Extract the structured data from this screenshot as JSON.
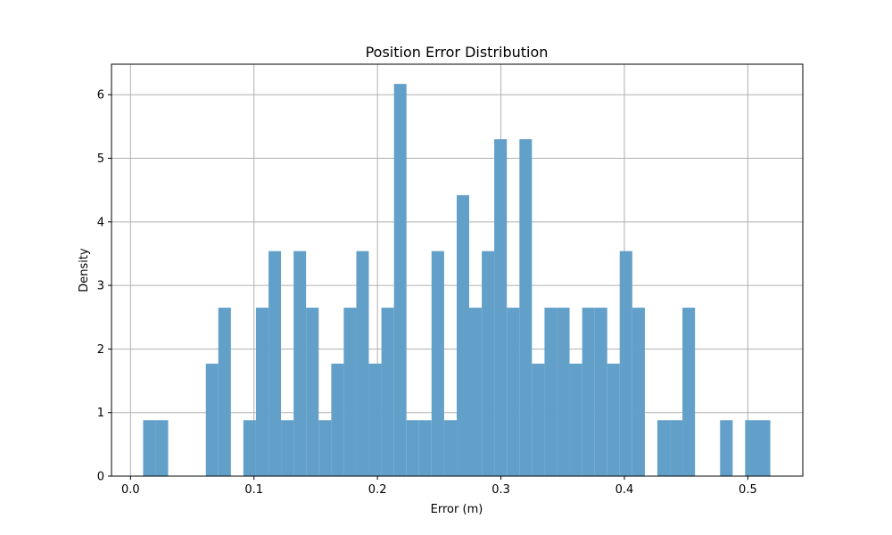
{
  "chart_data": {
    "type": "bar",
    "title": "Position Error Distribution",
    "xlabel": "Error (m)",
    "ylabel": "Density",
    "xlim": [
      -0.0154,
      0.5445
    ],
    "ylim": [
      0,
      6.48
    ],
    "xticks": [
      "0.0",
      "0.1",
      "0.2",
      "0.3",
      "0.4",
      "0.5"
    ],
    "yticks": [
      "0",
      "1",
      "2",
      "3",
      "4",
      "5",
      "6"
    ],
    "grid": true,
    "bar_color": "#62a0ca",
    "bin_edges": [
      0.0102,
      0.0203,
      0.0305,
      0.0406,
      0.0508,
      0.061,
      0.0711,
      0.0813,
      0.0914,
      0.1016,
      0.1118,
      0.1219,
      0.1321,
      0.1422,
      0.1524,
      0.1626,
      0.1727,
      0.1829,
      0.193,
      0.2032,
      0.2134,
      0.2235,
      0.2337,
      0.2438,
      0.254,
      0.2642,
      0.2743,
      0.2845,
      0.2946,
      0.3048,
      0.315,
      0.3251,
      0.3353,
      0.3454,
      0.3556,
      0.3658,
      0.3759,
      0.3861,
      0.3962,
      0.4064,
      0.4166,
      0.4267,
      0.4369,
      0.447,
      0.4572,
      0.4674,
      0.4775,
      0.4877,
      0.4978,
      0.508,
      0.5182
    ],
    "values": [
      0.88,
      0.88,
      0,
      0,
      0,
      1.77,
      2.65,
      0,
      0.88,
      2.65,
      3.54,
      0.88,
      3.54,
      2.65,
      0.88,
      1.77,
      2.65,
      3.54,
      1.77,
      2.65,
      6.17,
      0.88,
      0.88,
      3.54,
      0.88,
      4.42,
      2.65,
      3.54,
      5.3,
      2.65,
      5.3,
      1.77,
      2.65,
      2.65,
      1.77,
      2.65,
      2.65,
      1.77,
      3.54,
      2.65,
      0,
      0.88,
      0.88,
      2.65,
      0,
      0,
      0.88,
      0,
      0.88,
      0.88
    ]
  }
}
